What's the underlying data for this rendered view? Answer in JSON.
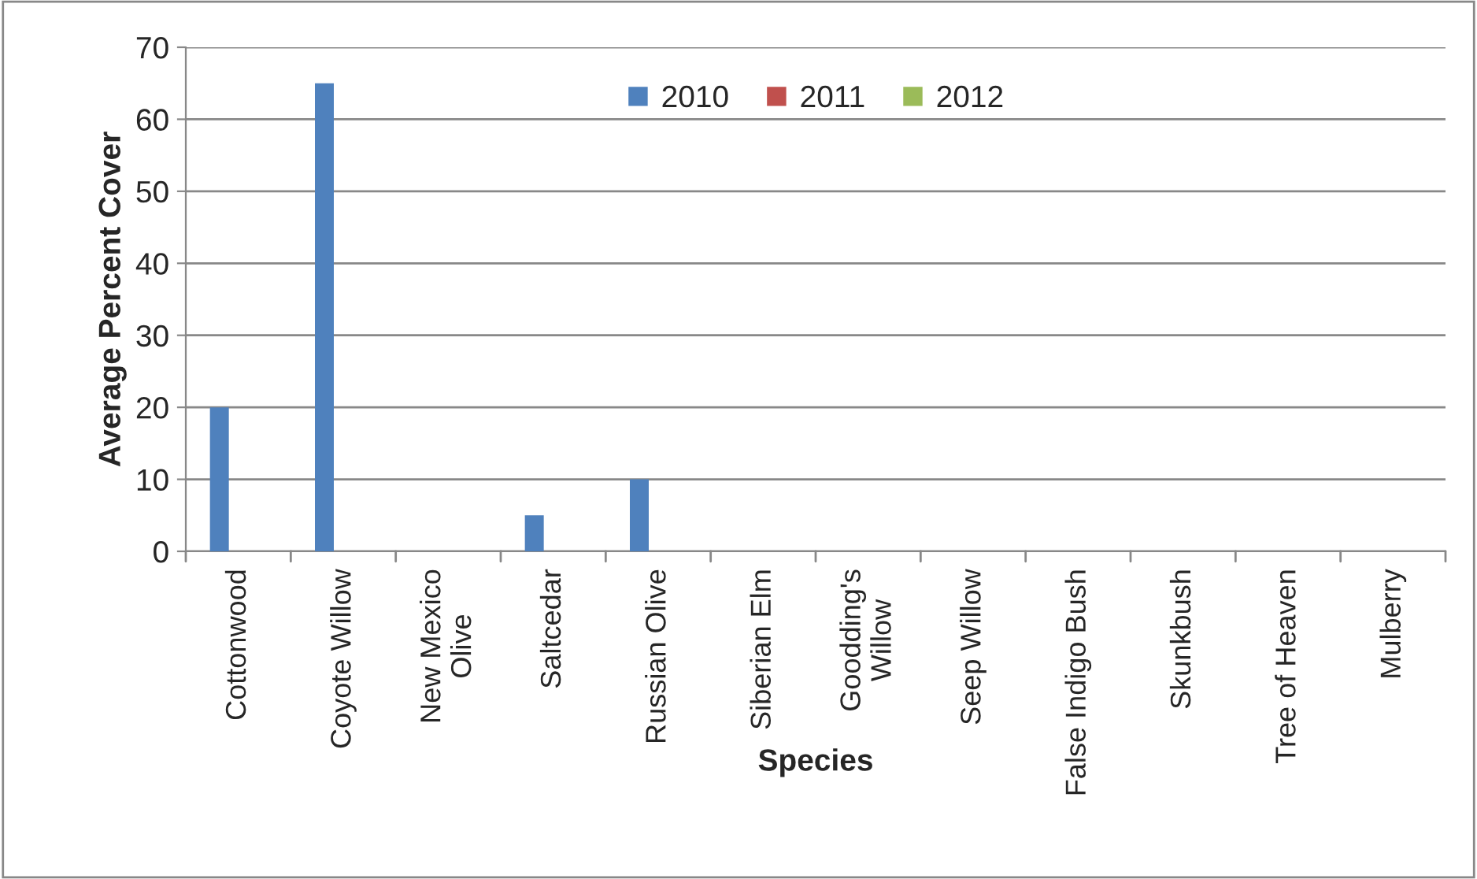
{
  "chart_data": {
    "type": "bar",
    "xlabel": "Species",
    "ylabel": "Average Percent Cover",
    "categories": [
      "Cottonwood",
      "Coyote Willow",
      "New Mexico\nOlive",
      "Saltcedar",
      "Russian Olive",
      "Siberian Elm",
      "Goodding's\nWillow",
      "Seep Willow",
      "False Indigo Bush",
      "Skunkbush",
      "Tree of Heaven",
      "Mulberry"
    ],
    "series": [
      {
        "name": "2010",
        "color": "#4f81bd",
        "values": [
          20,
          65,
          0,
          5,
          10,
          0,
          0,
          0,
          0,
          0,
          0,
          0
        ]
      },
      {
        "name": "2011",
        "color": "#c0504d",
        "values": [
          0,
          0,
          0,
          0,
          0,
          0,
          0,
          0,
          0,
          0,
          0,
          0
        ]
      },
      {
        "name": "2012",
        "color": "#9bbb59",
        "values": [
          0,
          0,
          0,
          0,
          0,
          0,
          0,
          0,
          0,
          0,
          0,
          0
        ]
      }
    ],
    "ylim": [
      0,
      70
    ],
    "yticks": [
      0,
      10,
      20,
      30,
      40,
      50,
      60,
      70
    ],
    "grid": "y",
    "legend": "top"
  }
}
